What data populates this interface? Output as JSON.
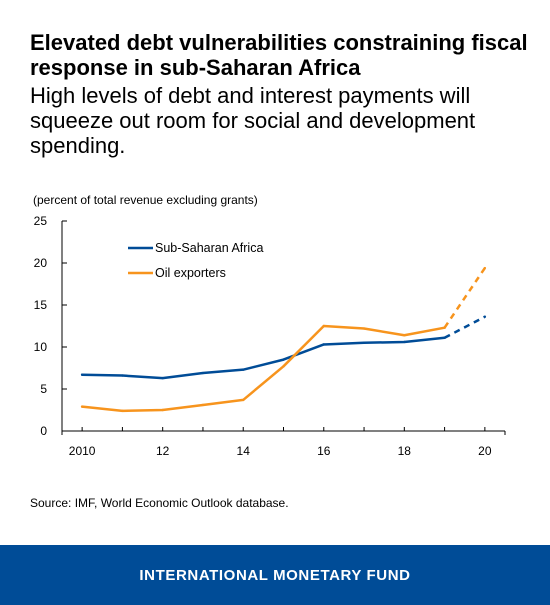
{
  "header": {
    "title": "Elevated debt vulnerabilities constraining fiscal response in sub-Saharan Africa",
    "subtitle": "High levels of debt and interest payments will squeeze out room for social and development spending."
  },
  "chart_data": {
    "type": "line",
    "unit_label": "(percent of total revenue excluding grants)",
    "x": [
      2010,
      2011,
      2012,
      2013,
      2014,
      2015,
      2016,
      2017,
      2018,
      2019,
      2020
    ],
    "x_tick_labels": [
      "2010",
      "12",
      "14",
      "16",
      "18",
      "20"
    ],
    "x_tick_values": [
      2010,
      2012,
      2014,
      2016,
      2018,
      2020
    ],
    "y_tick_labels": [
      "0",
      "5",
      "10",
      "15",
      "20",
      "25"
    ],
    "ylim": [
      0,
      25
    ],
    "xlim": [
      2009.5,
      2020.5
    ],
    "projection_from": 2019,
    "grid": false,
    "legend_position": "top-left",
    "series": [
      {
        "name": "Sub-Saharan Africa",
        "color": "#004c97",
        "values": [
          6.7,
          6.6,
          6.3,
          6.9,
          7.3,
          8.5,
          10.3,
          10.5,
          10.6,
          11.1,
          13.6
        ]
      },
      {
        "name": "Oil exporters",
        "color": "#f7941d",
        "values": [
          2.9,
          2.4,
          2.5,
          3.1,
          3.7,
          7.7,
          12.5,
          12.2,
          11.4,
          12.3,
          19.4
        ]
      }
    ]
  },
  "source": "Source: IMF, World Economic Outlook database.",
  "footer": {
    "label": "INTERNATIONAL MONETARY FUND",
    "color": "#004c97"
  }
}
